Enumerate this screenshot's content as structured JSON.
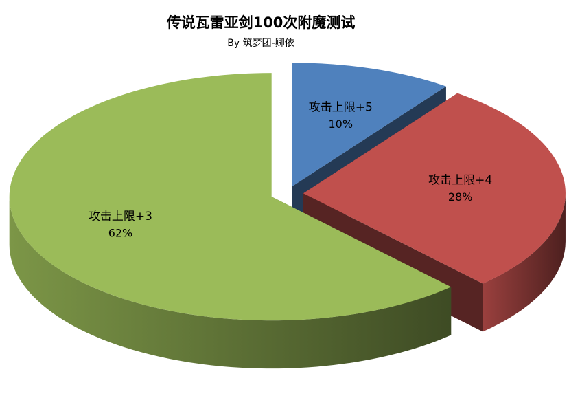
{
  "chart_data": {
    "type": "pie3d",
    "title": "传说瓦雷亚剑100次附魔测试",
    "subtitle": "By 筑梦团-卿依",
    "categories": [
      "攻击上限+5",
      "攻击上限+4",
      "攻击上限+3"
    ],
    "values": [
      10,
      28,
      62
    ],
    "value_labels": [
      "10%",
      "28%",
      "62%"
    ],
    "colors": [
      "#4f81bd",
      "#c0504d",
      "#9bbb59"
    ]
  }
}
